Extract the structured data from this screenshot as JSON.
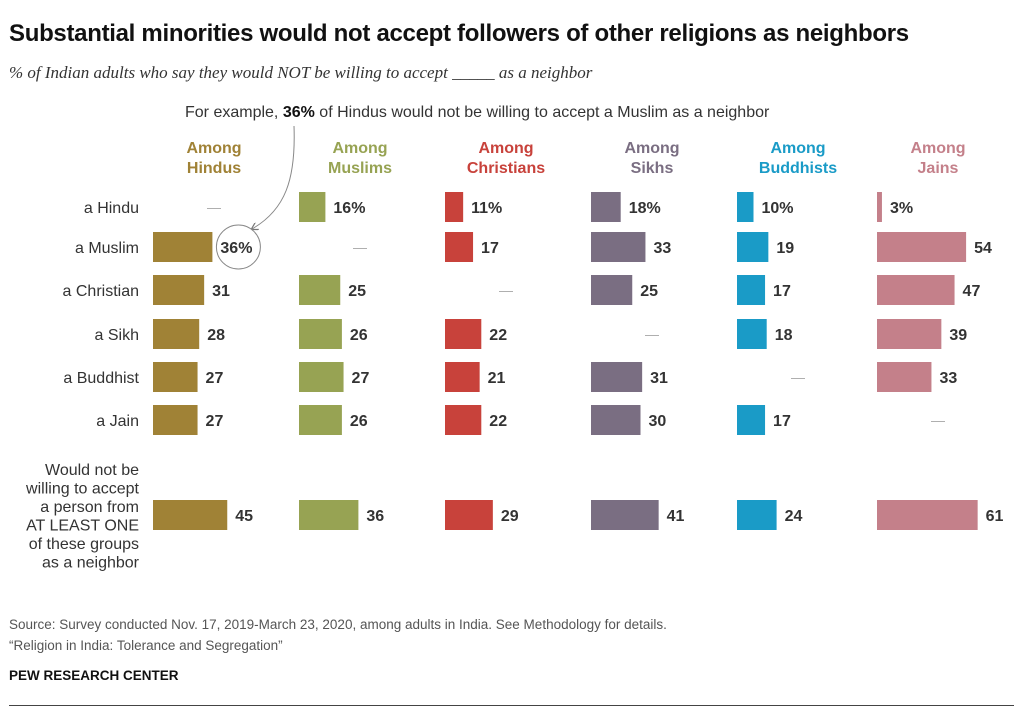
{
  "chart_data": {
    "type": "bar",
    "title": "Substantial minorities would not accept followers of other religions as neighbors",
    "subtitle": "% of Indian adults who say they would NOT be willing to accept _____ as a neighbor",
    "annotation": {
      "prefix": "For example, ",
      "value": "36%",
      "suffix": " of Hindus would not be willing to accept a Muslim as a neighbor"
    },
    "categories": [
      "a Hindu",
      "a Muslim",
      "a Christian",
      "a Sikh",
      "a Buddhist",
      "a Jain",
      "Would not be willing to accept a person from AT LEAST ONE of these groups as a neighbor"
    ],
    "category_lines": [
      [
        "a Hindu"
      ],
      [
        "a Muslim"
      ],
      [
        "a Christian"
      ],
      [
        "a Sikh"
      ],
      [
        "a Buddhist"
      ],
      [
        "a Jain"
      ],
      [
        "Would not be",
        "willing to accept",
        "a person from",
        "AT LEAST ONE",
        "of these groups",
        "as a neighbor"
      ]
    ],
    "series": [
      {
        "name": "Among Hindus",
        "header": [
          "Among",
          "Hindus"
        ],
        "color": "#a08236",
        "values": [
          null,
          36,
          31,
          28,
          27,
          27,
          45
        ],
        "labels": [
          "—",
          "36%",
          "31",
          "28",
          "27",
          "27",
          "45"
        ]
      },
      {
        "name": "Among Muslims",
        "header": [
          "Among",
          "Muslims"
        ],
        "color": "#97a353",
        "values": [
          16,
          null,
          25,
          26,
          27,
          26,
          36
        ],
        "labels": [
          "16%",
          "—",
          "25",
          "26",
          "27",
          "26",
          "36"
        ]
      },
      {
        "name": "Among Christians",
        "header": [
          "Among",
          "Christians"
        ],
        "color": "#c8423b",
        "values": [
          11,
          17,
          null,
          22,
          21,
          22,
          29
        ],
        "labels": [
          "11%",
          "17",
          "—",
          "22",
          "21",
          "22",
          "29"
        ]
      },
      {
        "name": "Among Sikhs",
        "header": [
          "Among",
          "Sikhs"
        ],
        "color": "#7a6e82",
        "values": [
          18,
          33,
          25,
          null,
          31,
          30,
          41
        ],
        "labels": [
          "18%",
          "33",
          "25",
          "—",
          "31",
          "30",
          "41"
        ]
      },
      {
        "name": "Among Buddhists",
        "header": [
          "Among",
          "Buddhists"
        ],
        "color": "#1a9bc7",
        "values": [
          10,
          19,
          17,
          18,
          null,
          17,
          24
        ],
        "labels": [
          "10%",
          "19",
          "17",
          "18",
          "—",
          "17",
          "24"
        ]
      },
      {
        "name": "Among Jains",
        "header": [
          "Among",
          "Jains"
        ],
        "color": "#c4808a",
        "values": [
          3,
          54,
          47,
          39,
          33,
          null,
          61
        ],
        "labels": [
          "3%",
          "54",
          "47",
          "39",
          "33",
          "—",
          "61"
        ]
      }
    ],
    "header_colors": [
      "#a08236",
      "#97a353",
      "#c8423b",
      "#7a6e82",
      "#1a9bc7",
      "#c4808a"
    ],
    "highlight": {
      "series": 0,
      "category": 1
    }
  },
  "footer": {
    "source": "Source: Survey conducted Nov. 17, 2019-March 23, 2020, among adults in India. See Methodology for details.",
    "report": "“Religion in India: Tolerance and Segregation”",
    "brand": "PEW RESEARCH CENTER"
  }
}
